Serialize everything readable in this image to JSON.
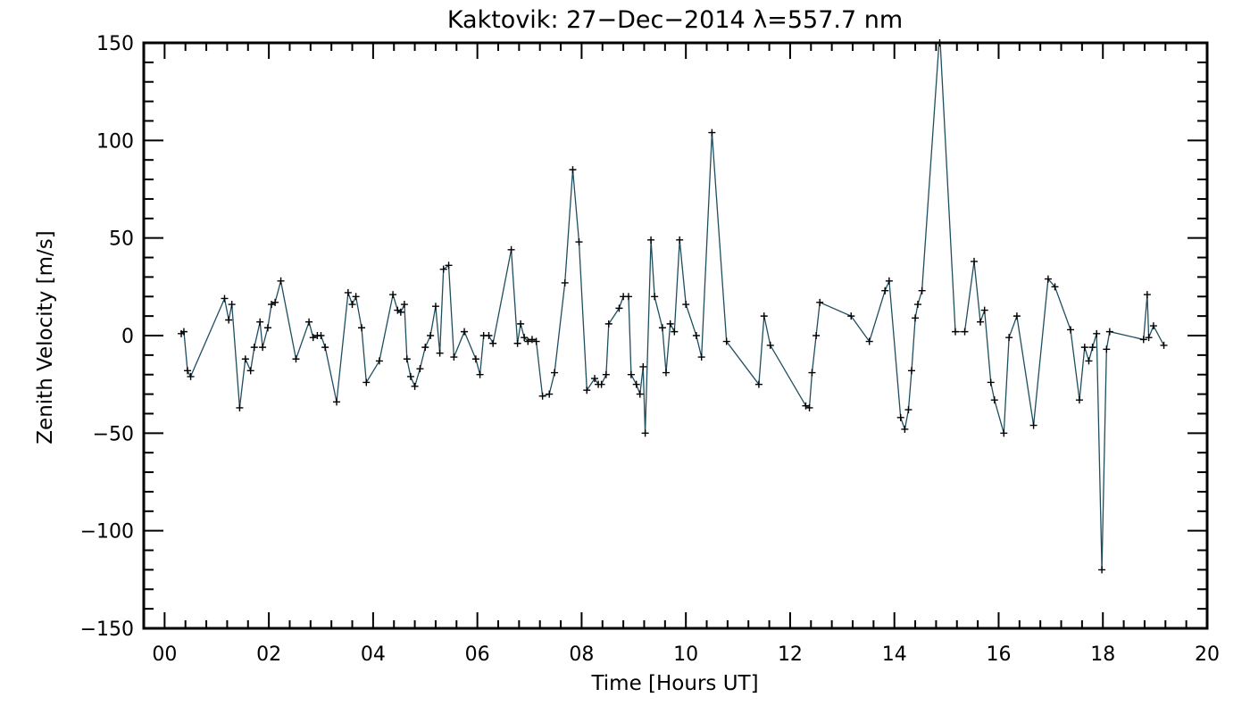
{
  "chart_data": {
    "type": "line",
    "title": "Kaktovik: 27−Dec−2014 λ=557.7 nm",
    "xlabel": "Time [Hours UT]",
    "ylabel": "Zenith Velocity [m/s]",
    "xlim": [
      -0.4,
      20.0
    ],
    "ylim": [
      -150,
      150
    ],
    "xticks": [
      0,
      2,
      4,
      6,
      8,
      10,
      12,
      14,
      16,
      18,
      20
    ],
    "xtick_labels": [
      "00",
      "02",
      "04",
      "06",
      "08",
      "10",
      "12",
      "14",
      "16",
      "18",
      "20"
    ],
    "yticks": [
      150,
      100,
      50,
      0,
      -50,
      -100,
      -150
    ],
    "ytick_labels": [
      "150",
      "100",
      "50",
      "0",
      "−50",
      "−100",
      "−150"
    ],
    "grid": false,
    "line_color": "#1f4e5f",
    "marker": "+",
    "series": [
      {
        "x": [
          0.32,
          0.37,
          0.44,
          0.5,
          1.15,
          1.23,
          1.29,
          1.44,
          1.55,
          1.65,
          1.72,
          1.83,
          1.88,
          1.98,
          2.05,
          2.12,
          2.23,
          2.52,
          2.77,
          2.85,
          2.93,
          3.0,
          3.08,
          3.3,
          3.52,
          3.6,
          3.67,
          3.78,
          3.87,
          4.12,
          4.38,
          4.47,
          4.53,
          4.6,
          4.65,
          4.72,
          4.8,
          4.9,
          5.0,
          5.1,
          5.2,
          5.28,
          5.35,
          5.45,
          5.55,
          5.75,
          5.97,
          6.05,
          6.12,
          6.22,
          6.3,
          6.65,
          6.77,
          6.83,
          6.9,
          6.97,
          7.05,
          7.13,
          7.25,
          7.38,
          7.48,
          7.68,
          7.83,
          7.95,
          8.1,
          8.25,
          8.32,
          8.38,
          8.47,
          8.52,
          8.72,
          8.8,
          8.9,
          8.95,
          9.05,
          9.12,
          9.18,
          9.22,
          9.33,
          9.4,
          9.55,
          9.62,
          9.7,
          9.78,
          9.88,
          10.0,
          10.2,
          10.3,
          10.5,
          10.78,
          11.4,
          11.5,
          11.62,
          12.3,
          12.37,
          12.42,
          12.5,
          12.57,
          13.17,
          13.52,
          13.82,
          13.9,
          14.12,
          14.2,
          14.27,
          14.33,
          14.4,
          14.45,
          14.53,
          14.87,
          15.17,
          15.35,
          15.53,
          15.65,
          15.73,
          15.85,
          15.92,
          16.1,
          16.2,
          16.35,
          16.67,
          16.95,
          17.08,
          17.38,
          17.55,
          17.65,
          17.73,
          17.8,
          17.88,
          17.98,
          18.07,
          18.13,
          18.78,
          18.85,
          18.88,
          18.97,
          19.17
        ],
        "y": [
          1,
          2,
          -18,
          -21,
          19,
          8,
          16,
          -37,
          -12,
          -18,
          -6,
          7,
          -6,
          4,
          16,
          17,
          28,
          -12,
          7,
          -1,
          0,
          0,
          -6,
          -34,
          22,
          16,
          20,
          4,
          -24,
          -13,
          21,
          13,
          12,
          16,
          -12,
          -21,
          -26,
          -17,
          -6,
          0,
          15,
          -9,
          34,
          36,
          -11,
          2,
          -12,
          -20,
          0,
          0,
          -4,
          44,
          -4,
          6,
          -1,
          -3,
          -2,
          -3,
          -31,
          -30,
          -19,
          27,
          85,
          48,
          -28,
          -22,
          -25,
          -25,
          -20,
          6,
          14,
          20,
          20,
          -20,
          -25,
          -30,
          -16,
          -50,
          49,
          20,
          4,
          -19,
          6,
          2,
          49,
          16,
          0,
          -11,
          104,
          -3,
          -25,
          10,
          -5,
          -36,
          -37,
          -19,
          0,
          17,
          10,
          -3,
          23,
          28,
          -42,
          -48,
          -38,
          -18,
          9,
          16,
          23,
          155,
          2,
          2,
          38,
          7,
          13,
          -24,
          -33,
          -50,
          -1,
          10,
          -46,
          29,
          25,
          3,
          -33,
          -6,
          -13,
          -6,
          1,
          -120,
          -7,
          2,
          -2,
          21,
          -1,
          5,
          -5
        ]
      }
    ]
  }
}
